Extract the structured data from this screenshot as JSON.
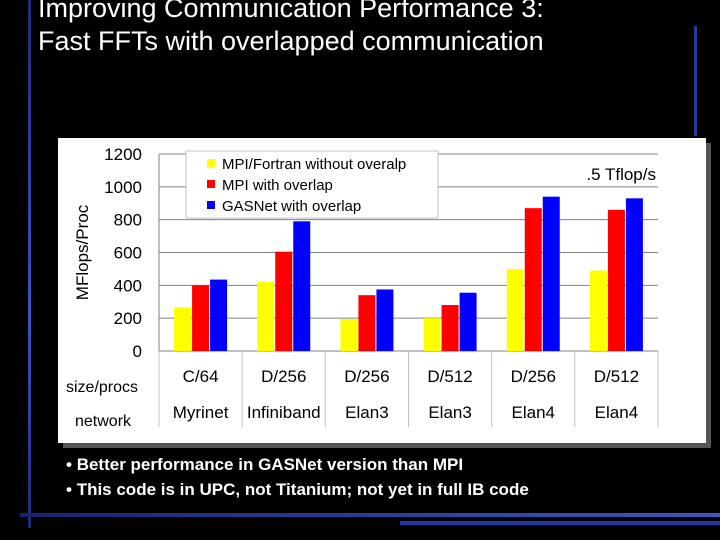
{
  "slide": {
    "title": "Improving Communication Performance 3:\nFast FFTs with overlapped communication",
    "bullets": [
      "Better performance in GASNet version than MPI",
      "This code is in UPC, not Titanium; not yet in full IB code"
    ]
  },
  "chart_data": {
    "type": "bar",
    "ylabel": "MFlops/Proc",
    "ylim": [
      0,
      1200
    ],
    "yticks": [
      0,
      200,
      400,
      600,
      800,
      1000,
      1200
    ],
    "annotation": ".5 Tflop/s",
    "row_labels": [
      "size/procs",
      "network"
    ],
    "categories": [
      "C/64",
      "D/256",
      "D/256",
      "D/512",
      "D/256",
      "D/512"
    ],
    "networks": [
      "Myrinet",
      "Infiniband",
      "Elan3",
      "Elan3",
      "Elan4",
      "Elan4"
    ],
    "legend_position": "top-left",
    "series": [
      {
        "name": "MPI/Fortran without overalp",
        "color": "#ffff00",
        "values": [
          265,
          420,
          195,
          200,
          500,
          490
        ]
      },
      {
        "name": "MPI with overlap",
        "color": "#ff0000",
        "values": [
          400,
          605,
          340,
          280,
          870,
          860
        ]
      },
      {
        "name": "GASNet with overlap",
        "color": "#0000ff",
        "values": [
          435,
          790,
          375,
          355,
          940,
          930
        ]
      }
    ]
  }
}
